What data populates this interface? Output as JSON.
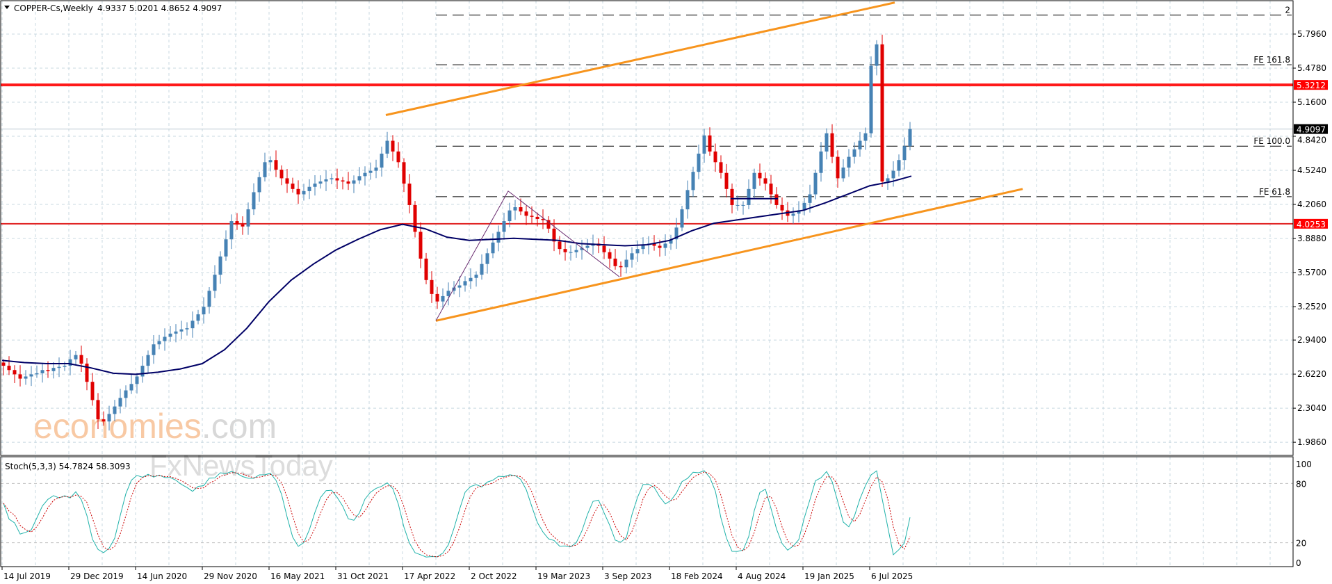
{
  "header": {
    "symbol": "COPPER-Cs,Weekly",
    "ohlc": "4.9337 5.0201 4.8652 4.9097",
    "indicator_label": "Stoch(5,3,3) 54.7824 58.3093"
  },
  "watermark": {
    "brand": "economies",
    "brand_suffix": ".com",
    "sub": "FxNewsToday"
  },
  "colors": {
    "bull": "#4682b4",
    "bear": "#e00000",
    "ma": "#000066",
    "channel": "#f7941d",
    "resistance": "#ff1a1a",
    "fib": "#000000",
    "stoch_main": "#20b2aa",
    "stoch_signal": "#cc0000",
    "grid": "#c8d8e0"
  },
  "chart_data": [
    {
      "type": "candlestick",
      "interval": "Weekly",
      "price_ticks": [
        "5.7960",
        "5.4780",
        "5.1600",
        "4.8420",
        "4.5240",
        "4.2060",
        "3.8880",
        "3.5700",
        "3.2520",
        "2.9400",
        "2.6220",
        "2.3040",
        "1.9860"
      ],
      "ylim": [
        1.95,
        6.05
      ],
      "date_ticks": [
        "14 Jul 2019",
        "29 Dec 2019",
        "14 Jun 2020",
        "29 Nov 2020",
        "16 May 2021",
        "31 Oct 2021",
        "17 Apr 2022",
        "2 Oct 2022",
        "19 Mar 2023",
        "3 Sep 2023",
        "18 Feb 2024",
        "4 Aug 2024",
        "19 Jan 2025",
        "6 Jul 2025"
      ],
      "closes": [
        2.7,
        2.66,
        2.62,
        2.58,
        2.6,
        2.62,
        2.63,
        2.66,
        2.65,
        2.68,
        2.69,
        2.7,
        2.76,
        2.8,
        2.72,
        2.55,
        2.38,
        2.2,
        2.18,
        2.25,
        2.32,
        2.4,
        2.47,
        2.53,
        2.6,
        2.7,
        2.8,
        2.9,
        2.93,
        2.97,
        3.0,
        3.02,
        3.04,
        3.05,
        3.12,
        3.18,
        3.25,
        3.4,
        3.55,
        3.72,
        3.88,
        4.05,
        4.02,
        4.0,
        4.16,
        4.32,
        4.46,
        4.6,
        4.62,
        4.53,
        4.45,
        4.4,
        4.35,
        4.3,
        4.33,
        4.37,
        4.4,
        4.42,
        4.44,
        4.45,
        4.43,
        4.42,
        4.4,
        4.43,
        4.47,
        4.5,
        4.52,
        4.55,
        4.68,
        4.8,
        4.7,
        4.6,
        4.4,
        4.2,
        3.95,
        3.7,
        3.5,
        3.37,
        3.3,
        3.35,
        3.4,
        3.43,
        3.45,
        3.49,
        3.52,
        3.55,
        3.65,
        3.75,
        3.85,
        3.95,
        4.05,
        4.15,
        4.18,
        4.14,
        4.1,
        4.09,
        4.07,
        4.06,
        3.98,
        3.86,
        3.79,
        3.76,
        3.76,
        3.78,
        3.8,
        3.82,
        3.84,
        3.82,
        3.76,
        3.7,
        3.63,
        3.62,
        3.69,
        3.75,
        3.79,
        3.83,
        3.84,
        3.82,
        3.8,
        3.84,
        3.88,
        3.99,
        4.16,
        4.34,
        4.51,
        4.68,
        4.85,
        4.7,
        4.6,
        4.5,
        4.35,
        4.2,
        4.2,
        4.2,
        4.35,
        4.5,
        4.45,
        4.4,
        4.3,
        4.2,
        4.15,
        4.1,
        4.12,
        4.15,
        4.22,
        4.3,
        4.5,
        4.7,
        4.87,
        4.65,
        4.45,
        4.55,
        4.65,
        4.72,
        4.8,
        4.87,
        5.5,
        5.7,
        4.42,
        4.45,
        4.52,
        4.62,
        4.75,
        4.91
      ],
      "moving_average": [
        2.75,
        2.73,
        2.72,
        2.72,
        2.68,
        2.63,
        2.62,
        2.64,
        2.67,
        2.72,
        2.85,
        3.05,
        3.3,
        3.5,
        3.65,
        3.78,
        3.88,
        3.97,
        4.02,
        3.98,
        3.9,
        3.87,
        3.88,
        3.89,
        3.88,
        3.87,
        3.84,
        3.83,
        3.82,
        3.83,
        3.87,
        3.96,
        4.03,
        4.06,
        4.09,
        4.12,
        4.15,
        4.22,
        4.3,
        4.38,
        4.42,
        4.47
      ],
      "current_price": {
        "label": "4.9097",
        "value": 4.9097
      },
      "horizontal_levels": [
        {
          "label": "5.3212",
          "value": 5.3212,
          "style": "thick"
        },
        {
          "label": "4.0253",
          "value": 4.0253,
          "style": "thin"
        }
      ],
      "fib_expansion": [
        {
          "label": "2",
          "value": 5.973
        },
        {
          "label": "FE 161.8",
          "value": 5.51
        },
        {
          "label": "FE 100.0",
          "value": 4.75
        },
        {
          "label": "FE 61.8",
          "value": 4.278
        }
      ],
      "channel": {
        "upper": [
          {
            "date": "Mar 2022",
            "price": 5.04
          },
          {
            "date": "Aug 2025",
            "price": 6.09
          }
        ],
        "lower": [
          {
            "date": "Jul 2022",
            "price": 3.12
          },
          {
            "date": "Aug 2026",
            "price": 4.35
          }
        ]
      },
      "fib_swing_points": [
        {
          "date": "Jul 2022",
          "price": 3.12
        },
        {
          "date": "Jan 2023",
          "price": 4.33
        },
        {
          "date": "Oct 2023",
          "price": 3.53
        }
      ]
    },
    {
      "type": "line",
      "name": "Stoch(5,3,3)",
      "y_ticks": [
        "100",
        "80",
        "20",
        "0"
      ],
      "ylim": [
        0,
        100
      ]
    }
  ]
}
